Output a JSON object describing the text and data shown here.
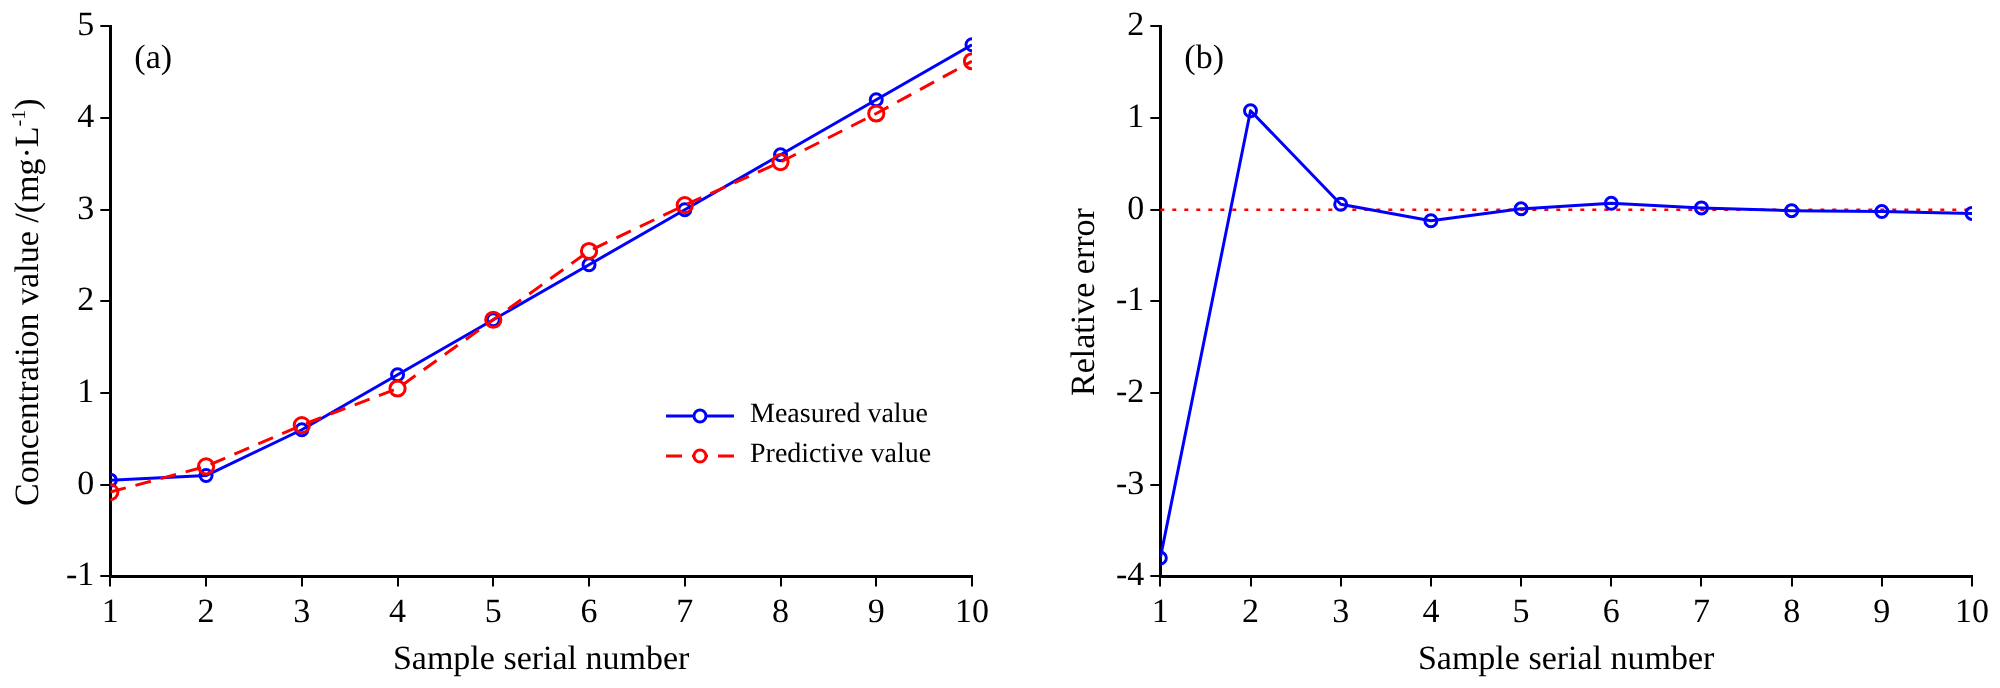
{
  "chart_data": [
    {
      "type": "line",
      "xlabel": "Sample serial number",
      "ylabel": "Concentration value /(mg·L$^{-1}$)",
      "annotations": [
        "(a)"
      ],
      "x": [
        1,
        2,
        3,
        4,
        5,
        6,
        7,
        8,
        9,
        10
      ],
      "xlim": [
        1,
        10
      ],
      "xticks": [
        1,
        2,
        3,
        4,
        5,
        6,
        7,
        8,
        9,
        10
      ],
      "ylim": [
        -1,
        5
      ],
      "yticks": [
        -1,
        0,
        1,
        2,
        3,
        4,
        5
      ],
      "series": [
        {
          "name": "Measured value",
          "color": "#0000ff",
          "line_style": "solid",
          "values": [
            0.05,
            0.1,
            0.6,
            1.2,
            1.8,
            2.4,
            3.0,
            3.6,
            4.2,
            4.8
          ]
        },
        {
          "name": "Predictive value",
          "color": "#ff0000",
          "line_style": "dashed",
          "values": [
            -0.08,
            0.2,
            0.65,
            1.05,
            1.8,
            2.55,
            3.05,
            3.52,
            4.05,
            4.62
          ]
        }
      ],
      "marker": "circle",
      "grid": false,
      "legend": "bottom right"
    },
    {
      "type": "line",
      "xlabel": "Sample serial number",
      "ylabel": "Relative error",
      "annotations": [
        "(b)"
      ],
      "x": [
        1,
        2,
        3,
        4,
        5,
        6,
        7,
        8,
        9,
        10
      ],
      "xlim": [
        1,
        10
      ],
      "xticks": [
        1,
        2,
        3,
        4,
        5,
        6,
        7,
        8,
        9,
        10
      ],
      "ylim": [
        -4,
        2
      ],
      "yticks": [
        -4,
        -3,
        -2,
        -1,
        0,
        1,
        2
      ],
      "series": [
        {
          "color": "#0000ff",
          "values": [
            -3.8,
            1.08,
            0.06,
            -0.12,
            0.01,
            0.07,
            0.02,
            -0.01,
            -0.02,
            -0.04
          ]
        }
      ],
      "ref_lines": [
        {
          "axis": "y",
          "value": 0,
          "color": "#ff0000",
          "line_style": "dotted"
        }
      ],
      "marker": "circle",
      "grid": false,
      "legend": false
    }
  ]
}
